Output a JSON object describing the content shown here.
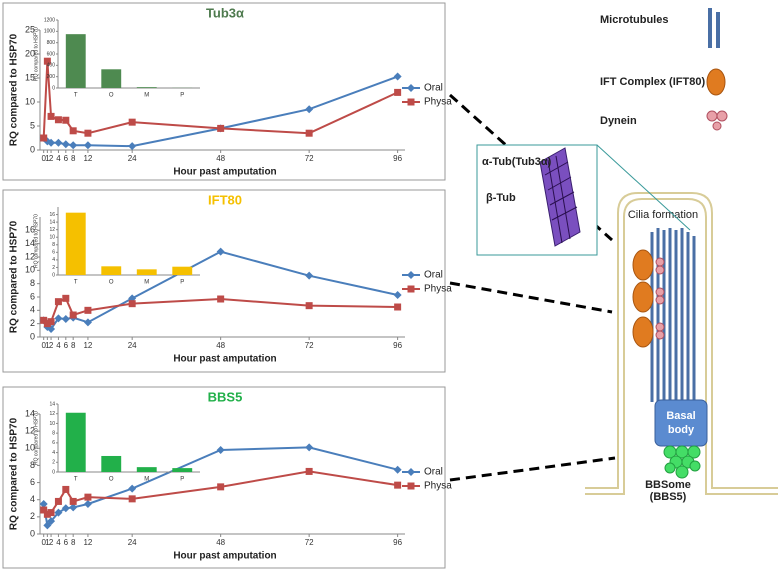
{
  "chart_data": [
    {
      "type": "line",
      "title": "Tub3α",
      "title_color": "#4e7a4e",
      "x_label": "Hour past amputation",
      "y_label": "RQ compared to HSP70",
      "x": [
        0,
        1,
        2,
        4,
        6,
        8,
        12,
        24,
        48,
        72,
        96
      ],
      "xlim": [
        -1,
        98
      ],
      "xticks": [
        0,
        1,
        2,
        4,
        6,
        8,
        12,
        24,
        48,
        72,
        96
      ],
      "ylim": [
        0,
        25
      ],
      "yticks": [
        0,
        5,
        10,
        15,
        20,
        25
      ],
      "series": [
        {
          "name": "Oral",
          "color": "#4a7ebb",
          "marker": "diamond",
          "values": [
            2.5,
            1.8,
            1.5,
            1.5,
            1.2,
            1.0,
            1.0,
            0.8,
            4.5,
            8.5,
            15.3
          ]
        },
        {
          "name": "Physa",
          "color": "#be4b48",
          "marker": "square",
          "values": [
            2.5,
            18.5,
            7.0,
            6.3,
            6.2,
            4.0,
            3.5,
            5.8,
            4.5,
            3.5,
            12
          ]
        }
      ],
      "inset": {
        "type": "bar",
        "y_label": "RQ compared to HSP70",
        "categories": [
          "T",
          "O",
          "M",
          "P"
        ],
        "values": [
          950,
          330,
          15,
          3
        ],
        "color": "#4e8a50",
        "ylim": [
          0,
          1200
        ],
        "yticks": [
          0,
          200,
          400,
          600,
          800,
          1000,
          1200
        ]
      }
    },
    {
      "type": "line",
      "title": "IFT80",
      "title_color": "#f5c000",
      "x_label": "Hour past amputation",
      "y_label": "RQ compared to HSP70",
      "x": [
        0,
        1,
        2,
        4,
        6,
        8,
        12,
        24,
        48,
        72,
        96
      ],
      "xlim": [
        -1,
        98
      ],
      "xticks": [
        0,
        1,
        2,
        4,
        6,
        8,
        12,
        24,
        48,
        72,
        96
      ],
      "ylim": [
        0,
        18
      ],
      "yticks": [
        0,
        2,
        4,
        6,
        8,
        10,
        12,
        14,
        16
      ],
      "series": [
        {
          "name": "Oral",
          "color": "#4a7ebb",
          "marker": "diamond",
          "values": [
            2.5,
            1.5,
            1.2,
            2.8,
            2.7,
            2.9,
            2.2,
            5.8,
            12.8,
            9.2,
            6.3
          ]
        },
        {
          "name": "Physa",
          "color": "#be4b48",
          "marker": "square",
          "values": [
            2.5,
            2.0,
            2.3,
            5.3,
            5.8,
            3.3,
            4.0,
            5.0,
            5.7,
            4.7,
            4.5
          ]
        }
      ],
      "inset": {
        "type": "bar",
        "y_label": "RQ compared to HSP70",
        "categories": [
          "T",
          "O",
          "M",
          "P"
        ],
        "values": [
          16.5,
          2.3,
          1.5,
          2.2
        ],
        "color": "#f5c000",
        "ylim": [
          0,
          18
        ],
        "yticks": [
          0,
          2,
          4,
          6,
          8,
          10,
          12,
          14,
          16
        ]
      }
    },
    {
      "type": "line",
      "title": "BBS5",
      "title_color": "#22b04a",
      "x_label": "Hour past amputation",
      "y_label": "RQ compared to HSP70",
      "x": [
        0,
        1,
        2,
        4,
        6,
        8,
        12,
        24,
        48,
        72,
        96
      ],
      "xlim": [
        -1,
        98
      ],
      "xticks": [
        0,
        1,
        2,
        4,
        6,
        8,
        12,
        24,
        48,
        72,
        96
      ],
      "ylim": [
        0,
        14
      ],
      "yticks": [
        0,
        2,
        4,
        6,
        8,
        10,
        12,
        14
      ],
      "series": [
        {
          "name": "Oral",
          "color": "#4a7ebb",
          "marker": "diamond",
          "values": [
            3.5,
            1.0,
            1.5,
            2.5,
            3.0,
            3.1,
            3.5,
            5.3,
            9.8,
            10.1,
            7.5
          ]
        },
        {
          "name": "Physa",
          "color": "#be4b48",
          "marker": "square",
          "values": [
            2.8,
            2.3,
            2.5,
            3.8,
            5.2,
            3.8,
            4.3,
            4.1,
            5.5,
            7.3,
            5.7
          ]
        }
      ],
      "inset": {
        "type": "bar",
        "y_label": "RQ compared to HSP70",
        "categories": [
          "T",
          "O",
          "M",
          "P"
        ],
        "values": [
          12.2,
          3.3,
          1.0,
          0.8
        ],
        "color": "#22b04a",
        "ylim": [
          0,
          14
        ],
        "yticks": [
          0,
          2,
          4,
          6,
          8,
          10,
          12,
          14
        ]
      }
    }
  ],
  "diagram": {
    "legend": [
      "Microtubules",
      "IFT Complex (IFT80)",
      "Dynein"
    ],
    "alpha_tub": "α-Tub(Tub3α)",
    "beta_tub": "β-Tub",
    "cilia": "Cilia formation",
    "basal_body": [
      "Basal",
      "body"
    ],
    "bbsome": [
      "BBSome",
      "(BBS5)"
    ]
  }
}
